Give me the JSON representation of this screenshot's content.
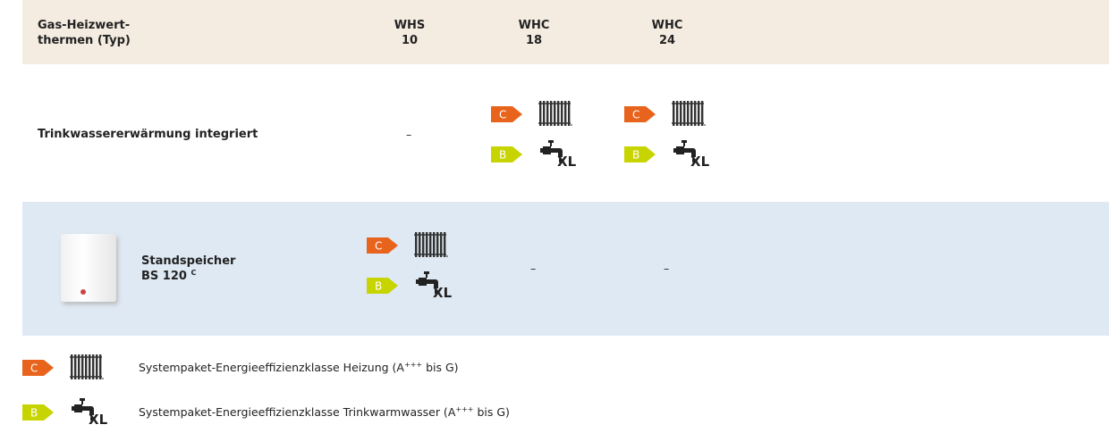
{
  "header": {
    "title": [
      "Gas-Heizwert-",
      "thermen (Typ)"
    ],
    "columns": [
      {
        "name": "WHS",
        "number": "10"
      },
      {
        "name": "WHC",
        "number": "18"
      },
      {
        "name": "WHC",
        "number": "24"
      }
    ]
  },
  "rows": [
    {
      "label": [
        "Trinkwassererwärmung integriert"
      ],
      "cells": [
        {
          "dash": "–"
        },
        {
          "heating": "C",
          "water": "B",
          "size": "XL"
        },
        {
          "heating": "C",
          "water": "B",
          "size": "XL"
        }
      ]
    },
    {
      "label": [
        "Standspeicher",
        "BS 120"
      ],
      "sup": "C",
      "cells": [
        {
          "heating": "C",
          "water": "B",
          "size": "XL"
        },
        {
          "dash": "–"
        },
        {
          "dash": "–"
        }
      ]
    }
  ],
  "legend": [
    {
      "heating": "C",
      "text": "Systempaket-Energieeffizienzklasse Heizung (A",
      "sup": "+++",
      "tail": " bis G)"
    },
    {
      "water": "B",
      "size": "XL",
      "text": "Systempaket-Energieeffizienzklasse Trinkwarmwasser (A",
      "sup": "+++",
      "tail": " bis G)"
    }
  ]
}
